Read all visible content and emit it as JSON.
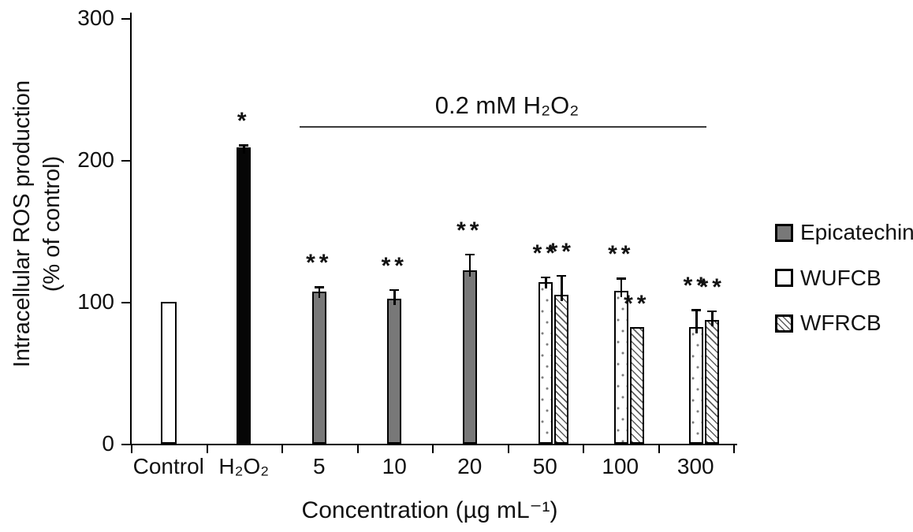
{
  "figure": {
    "background": "#ffffff"
  },
  "chart_data": {
    "type": "bar",
    "title": "",
    "ylabel_line1": "Intracellular ROS production",
    "ylabel_line2": "(% of control)",
    "xlabel": "Concentration (µg mL⁻¹)",
    "ylim": [
      0,
      300
    ],
    "yticks": [
      0,
      100,
      200,
      300
    ],
    "grid": false,
    "legend_position": "right",
    "categories": [
      "Control",
      "H₂O₂",
      "5",
      "10",
      "20",
      "50",
      "100",
      "300"
    ],
    "annotation": {
      "text": "0.2 mM H₂O₂",
      "spans_categories": [
        "5",
        "300"
      ],
      "y_value": 223
    },
    "bars": [
      {
        "category": "Control",
        "series": "Control",
        "value": 100,
        "error": 0,
        "sig": ""
      },
      {
        "category": "H₂O₂",
        "series": "H2O2",
        "value": 209,
        "error": 2,
        "sig": "*"
      },
      {
        "category": "5",
        "series": "Epicatechin",
        "value": 107,
        "error": 4,
        "sig": "**"
      },
      {
        "category": "10",
        "series": "Epicatechin",
        "value": 102,
        "error": 7,
        "sig": "**"
      },
      {
        "category": "20",
        "series": "Epicatechin",
        "value": 122,
        "error": 12,
        "sig": "**"
      },
      {
        "category": "50",
        "series": "WUFCB",
        "value": 114,
        "error": 4,
        "sig": "**"
      },
      {
        "category": "50",
        "series": "WFRCB",
        "value": 105,
        "error": 14,
        "sig": "**"
      },
      {
        "category": "100",
        "series": "WUFCB",
        "value": 108,
        "error": 9,
        "sig": "**"
      },
      {
        "category": "100",
        "series": "WFRCB",
        "value": 82,
        "error": 0,
        "sig": "**"
      },
      {
        "category": "300",
        "series": "WUFCB",
        "value": 82,
        "error": 13,
        "sig": "**"
      },
      {
        "category": "300",
        "series": "WFRCB",
        "value": 87,
        "error": 7,
        "sig": "**"
      }
    ],
    "legend": [
      {
        "key": "epicatechin",
        "label": "Epicatechin",
        "fill_style": "solid-gray"
      },
      {
        "key": "wufcb",
        "label": "WUFCB",
        "fill_style": "white"
      },
      {
        "key": "wfrcb",
        "label": "WFRCB",
        "fill_style": "diagonal-hatch"
      }
    ],
    "colors": {
      "gray_fill": "#787878",
      "black_fill": "#060606",
      "bar_border": "#000000",
      "hatch_line": "#5d5d5d",
      "dot": "#7e7e7e",
      "text": "#111111",
      "annotation_line": "#3a3a3a"
    }
  }
}
